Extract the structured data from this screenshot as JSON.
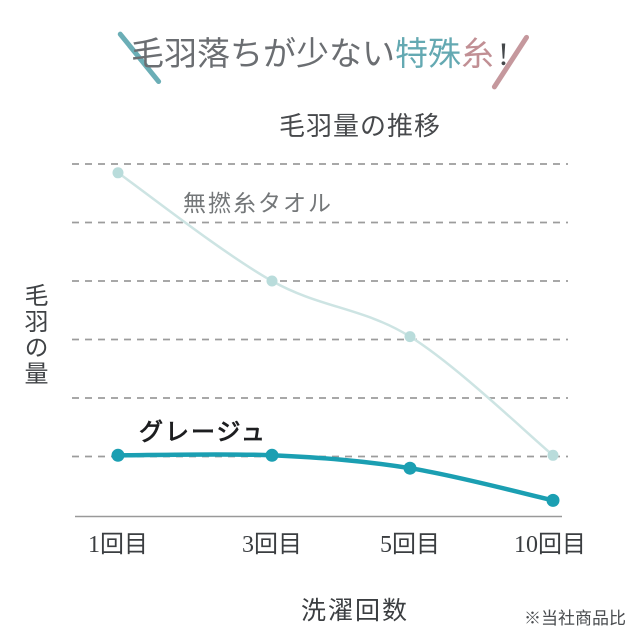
{
  "header": {
    "prefix": "毛羽落ちが少ない",
    "highlight_teal": "特殊",
    "highlight_pink": "糸",
    "exclamation": "!"
  },
  "colors": {
    "teal_accent": "#64a9b2",
    "pink_accent": "#c18f94",
    "teal_slash": "#6baeb6",
    "pink_slash": "#c5989d",
    "dark_series": "#1b9fb2",
    "light_series": "#cde4e3",
    "light_series_point": "#b9dcdb",
    "grid": "#9c9c9c",
    "axis": "#999999"
  },
  "chart_data": {
    "type": "line",
    "title": "毛羽量の推移",
    "xlabel": "洗濯回数",
    "ylabel": "毛羽の量",
    "categories": [
      "1回目",
      "3回目",
      "5回目",
      "10回目"
    ],
    "series": [
      {
        "name": "無撚糸タオル",
        "values": [
          5.85,
          4.0,
          3.05,
          1.02
        ],
        "color": "#cde4e3",
        "point_color": "#b9dcdb"
      },
      {
        "name": "グレージュ",
        "values": [
          1.02,
          1.02,
          0.8,
          0.25
        ],
        "color": "#1b9fb2",
        "point_color": "#1b9fb2"
      }
    ],
    "ylim": [
      0,
      6.3
    ],
    "grid": "horizontal-dashed",
    "gridline_values": [
      1,
      2,
      3,
      4,
      5,
      6
    ],
    "legend_position": "inline-labels",
    "note": "※当社商品比"
  }
}
